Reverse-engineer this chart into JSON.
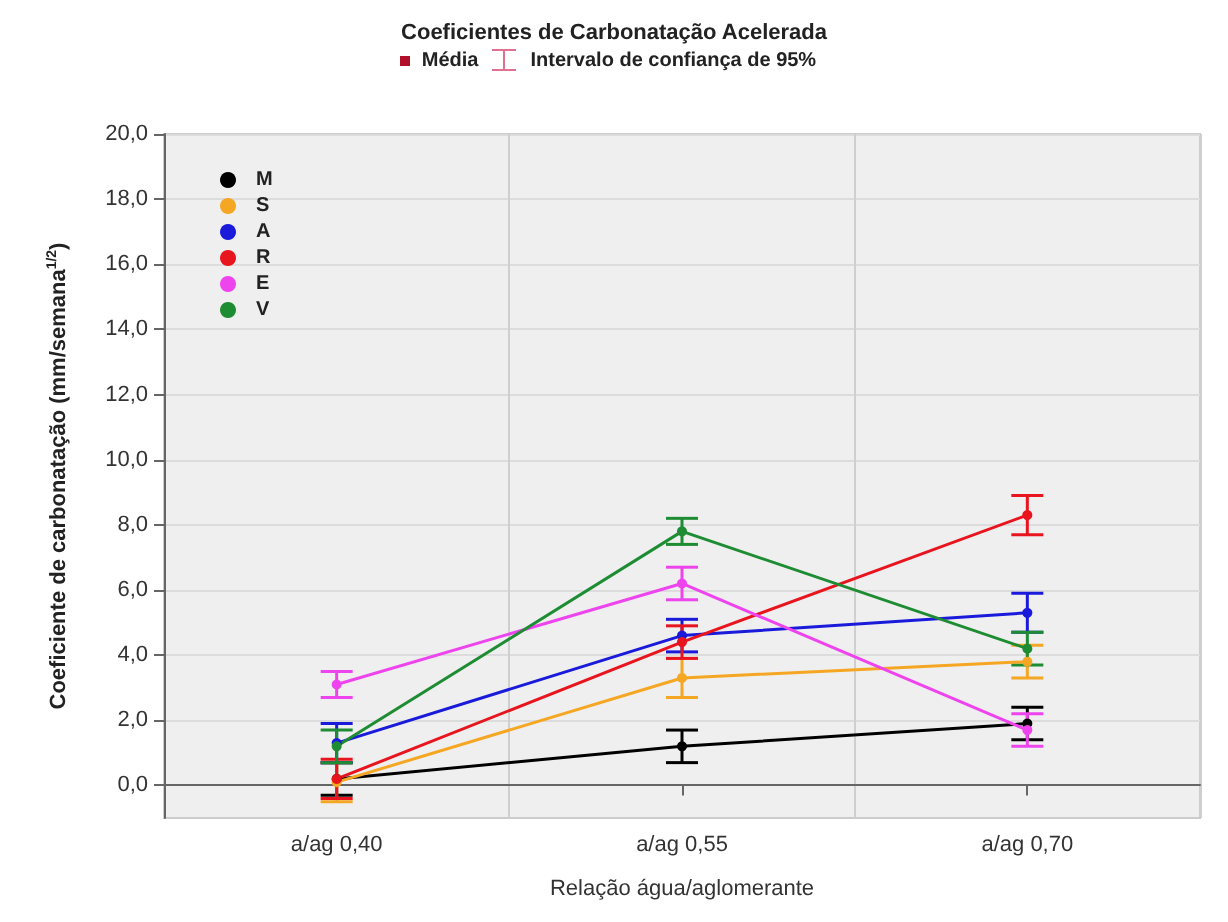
{
  "chart_data": {
    "type": "line",
    "title": "Coeficientes de Carbonatação Acelerada",
    "xlabel": "Relação água/aglomerante",
    "ylabel": "Coeficiente de carbonatação (mm/semana$^{1/2}$)",
    "annotations": [
      "Média",
      "Intervalo de confiança de 95%"
    ],
    "categories": [
      "a/ag 0,40",
      "a/ag 0,55",
      "a/ag 0,70"
    ],
    "series": [
      {
        "name": "M",
        "color": "#000000",
        "values": [
          0.2,
          1.2,
          1.9
        ],
        "errors": [
          0.5,
          0.5,
          0.5
        ]
      },
      {
        "name": "S",
        "color": "#f5a623",
        "values": [
          0.1,
          3.3,
          3.8
        ],
        "errors": [
          0.6,
          0.6,
          0.5
        ]
      },
      {
        "name": "A",
        "color": "#1a1adb",
        "values": [
          1.3,
          4.6,
          5.3
        ],
        "errors": [
          0.6,
          0.5,
          0.6
        ]
      },
      {
        "name": "R",
        "color": "#e8141e",
        "values": [
          0.2,
          4.4,
          8.3
        ],
        "errors": [
          0.6,
          0.5,
          0.6
        ]
      },
      {
        "name": "E",
        "color": "#ee44ee",
        "values": [
          3.1,
          6.2,
          1.7
        ],
        "errors": [
          0.4,
          0.5,
          0.5
        ]
      },
      {
        "name": "V",
        "color": "#1e8c32",
        "values": [
          1.2,
          7.8,
          4.2
        ],
        "errors": [
          0.5,
          0.4,
          0.5
        ]
      }
    ],
    "ylim": [
      -1,
      20
    ],
    "yticks": [
      {
        "value": 0,
        "label": "0,0"
      },
      {
        "value": 2,
        "label": "2,0"
      },
      {
        "value": 4,
        "label": "4,0"
      },
      {
        "value": 6,
        "label": "6,0"
      },
      {
        "value": 8,
        "label": "8,0"
      },
      {
        "value": 10,
        "label": "10,0"
      },
      {
        "value": 12,
        "label": "12,0"
      },
      {
        "value": 14,
        "label": "14,0"
      },
      {
        "value": 16,
        "label": "16,0"
      },
      {
        "value": 18,
        "label": "18,0"
      },
      {
        "value": 20,
        "label": "20,0"
      }
    ],
    "grid": true,
    "legend": "top left",
    "marker": "circle",
    "line_style": "solid"
  }
}
